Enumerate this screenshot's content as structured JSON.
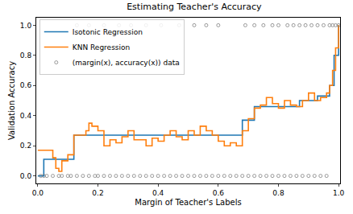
{
  "chart_data": {
    "type": "line",
    "title": "Estimating Teacher's Accuracy",
    "x_label": "Margin of Teacher's Labels",
    "y_label": "Validation Accuracy",
    "xlim": [
      -0.005,
      1.005
    ],
    "ylim": [
      -0.05,
      1.05
    ],
    "xticks": [
      {
        "value": 0,
        "label": "0.0"
      },
      0.2,
      0.4,
      0.6,
      0.8,
      {
        "value": 1,
        "label": "1.0"
      }
    ],
    "yticks": [
      {
        "value": 0,
        "label": "0.0"
      },
      0.2,
      0.4,
      0.6,
      0.8,
      {
        "value": 1,
        "label": "1.0"
      }
    ],
    "grid": false,
    "legend": "upper left",
    "series": [
      {
        "name": "Isotonic Regression",
        "color": "#1f77b4",
        "type": "line",
        "line_style": "steps",
        "x": [
          0,
          0.02,
          0.12,
          0.68,
          0.72,
          0.87,
          0.93,
          0.97,
          0.985,
          1.0
        ],
        "values": [
          0,
          0.11,
          0.27,
          0.37,
          0.46,
          0.5,
          0.53,
          0.6,
          0.8,
          1.0
        ]
      },
      {
        "name": "KNN Regression",
        "color": "#ff7f0e",
        "type": "line",
        "line_style": "steps",
        "x": [
          0,
          0.02,
          0.04,
          0.05,
          0.06,
          0.07,
          0.08,
          0.09,
          0.1,
          0.12,
          0.14,
          0.16,
          0.17,
          0.18,
          0.2,
          0.22,
          0.24,
          0.26,
          0.28,
          0.3,
          0.32,
          0.34,
          0.36,
          0.38,
          0.4,
          0.42,
          0.44,
          0.46,
          0.48,
          0.5,
          0.52,
          0.54,
          0.56,
          0.58,
          0.6,
          0.62,
          0.64,
          0.66,
          0.68,
          0.7,
          0.72,
          0.74,
          0.76,
          0.78,
          0.8,
          0.82,
          0.84,
          0.86,
          0.88,
          0.9,
          0.92,
          0.94,
          0.96,
          0.97,
          0.98,
          0.99,
          1.0
        ],
        "values": [
          0.17,
          0.17,
          0.17,
          0.12,
          0.05,
          0.03,
          0.1,
          0.1,
          0.14,
          0.27,
          0.27,
          0.3,
          0.35,
          0.33,
          0.3,
          0.2,
          0.24,
          0.22,
          0.26,
          0.3,
          0.24,
          0.24,
          0.2,
          0.25,
          0.23,
          0.27,
          0.3,
          0.26,
          0.24,
          0.3,
          0.27,
          0.33,
          0.3,
          0.27,
          0.23,
          0.2,
          0.22,
          0.2,
          0.3,
          0.38,
          0.45,
          0.47,
          0.52,
          0.48,
          0.45,
          0.5,
          0.47,
          0.46,
          0.5,
          0.55,
          0.5,
          0.52,
          0.55,
          0.6,
          0.7,
          0.85,
          1.0
        ]
      },
      {
        "name": "(margin(x), accuracy(x)) data",
        "color": "#808080",
        "type": "scatter",
        "marker": "circle-open",
        "x": [
          0.01,
          0.02,
          0.03,
          0.05,
          0.07,
          0.08,
          0.1,
          0.11,
          0.13,
          0.15,
          0.17,
          0.19,
          0.2,
          0.22,
          0.24,
          0.26,
          0.28,
          0.3,
          0.32,
          0.34,
          0.36,
          0.38,
          0.4,
          0.42,
          0.44,
          0.46,
          0.48,
          0.5,
          0.52,
          0.54,
          0.56,
          0.58,
          0.6,
          0.62,
          0.64,
          0.66,
          0.68,
          0.7,
          0.72,
          0.74,
          0.76,
          0.78,
          0.8,
          0.82,
          0.84,
          0.86,
          0.88,
          0.9,
          0.92,
          0.94,
          0.96,
          0.13,
          0.17,
          0.22,
          0.27,
          0.31,
          0.36,
          0.41,
          0.47,
          0.52,
          0.56,
          0.6,
          0.69,
          0.72,
          0.75,
          0.78,
          0.8,
          0.83,
          0.85,
          0.87,
          0.89,
          0.91,
          0.93,
          0.95,
          0.97,
          0.98,
          0.99,
          1.0
        ],
        "values": [
          0,
          0,
          0,
          0,
          0,
          0,
          0,
          0,
          0,
          0,
          0,
          0,
          0,
          0,
          0,
          0,
          0,
          0,
          0,
          0,
          0,
          0,
          0,
          0,
          0,
          0,
          0,
          0,
          0,
          0,
          0,
          0,
          0,
          0,
          0,
          0,
          0,
          0,
          0,
          0,
          0,
          0,
          0,
          0,
          0,
          0,
          0,
          0,
          0,
          0,
          0,
          1,
          1,
          1,
          1,
          1,
          1,
          1,
          1,
          1,
          1,
          1,
          1,
          1,
          1,
          1,
          1,
          1,
          1,
          1,
          1,
          1,
          1,
          1,
          1,
          1,
          1,
          1
        ]
      }
    ]
  }
}
